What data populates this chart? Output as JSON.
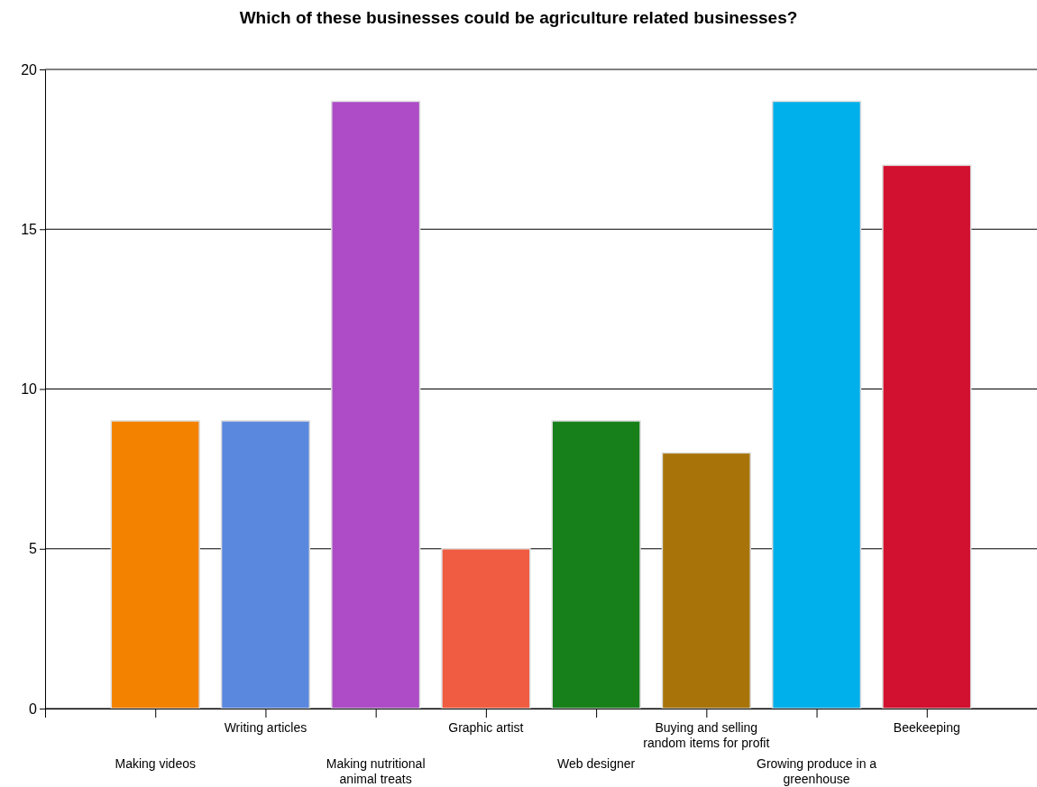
{
  "chart_data": {
    "type": "bar",
    "title": "Which of these businesses could be agriculture related businesses?",
    "categories": [
      "Making videos",
      "Writing articles",
      "Making nutritional animal treats",
      "Graphic artist",
      "Web designer",
      "Buying and selling random items for profit",
      "Growing produce in a greenhouse",
      "Beekeeping"
    ],
    "values": [
      9,
      9,
      19,
      5,
      9,
      8,
      19,
      17
    ],
    "colors": [
      "#f28200",
      "#5a88de",
      "#ad4cc6",
      "#f05c42",
      "#17801a",
      "#a8740a",
      "#00b0ea",
      "#d2102f"
    ],
    "ylim": [
      0,
      20
    ],
    "yticks": [
      0,
      5,
      10,
      15,
      20
    ],
    "grid": "y"
  }
}
